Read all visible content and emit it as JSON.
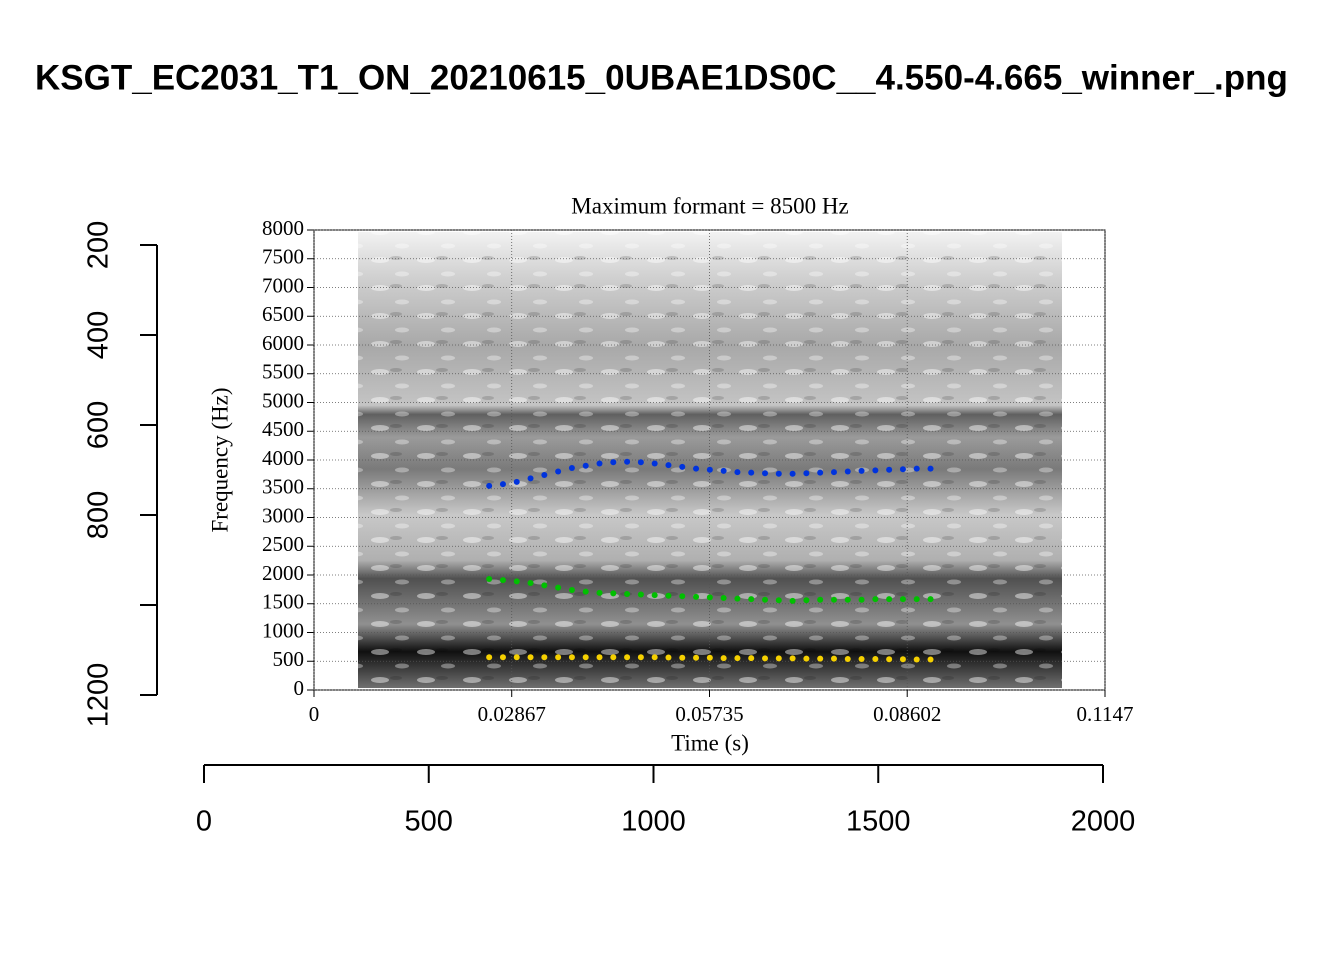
{
  "chart_data": [
    {
      "type": "image",
      "title": "KSGT_EC2031_T1_ON_20210615_0UBAE1DS0C__4.550-4.665_winner_.png",
      "xlim": [
        0,
        2000
      ],
      "xticks": [
        0,
        500,
        1000,
        1500,
        2000
      ],
      "ylim": [
        1200,
        200
      ],
      "yticks": [
        200,
        400,
        600,
        800,
        {
          "value": 1000,
          "label": null
        },
        1200
      ]
    },
    {
      "type": "scatter",
      "title": "Maximum formant = 8500 Hz",
      "xlabel": "Time (s)",
      "ylabel": "Frequency (Hz)",
      "xlim": [
        0,
        0.1147
      ],
      "xticks": [
        0,
        0.02867,
        0.05735,
        0.08602,
        0.1147
      ],
      "ylim": [
        0,
        8000
      ],
      "yticks": [
        0,
        500,
        1000,
        1500,
        2000,
        2500,
        3000,
        3500,
        4000,
        4500,
        5000,
        5500,
        6000,
        6500,
        7000,
        7500,
        8000
      ],
      "grid": true,
      "x": [
        0.0254,
        0.0274,
        0.0294,
        0.0314,
        0.0334,
        0.0354,
        0.0374,
        0.0394,
        0.0414,
        0.0434,
        0.0454,
        0.0474,
        0.0494,
        0.0514,
        0.0534,
        0.0554,
        0.0574,
        0.0594,
        0.0614,
        0.0634,
        0.0654,
        0.0674,
        0.0694,
        0.0714,
        0.0734,
        0.0754,
        0.0774,
        0.0794,
        0.0814,
        0.0834,
        0.0854,
        0.0874,
        0.0894
      ],
      "series": [
        {
          "color": "#f5d000",
          "values": [
            570,
            570,
            570,
            570,
            570,
            570,
            570,
            570,
            570,
            570,
            570,
            570,
            570,
            565,
            560,
            560,
            560,
            555,
            555,
            555,
            550,
            550,
            550,
            545,
            545,
            545,
            540,
            540,
            540,
            535,
            535,
            530,
            530
          ]
        },
        {
          "color": "#00c000",
          "values": [
            1930,
            1910,
            1890,
            1860,
            1820,
            1780,
            1740,
            1710,
            1690,
            1680,
            1670,
            1660,
            1650,
            1640,
            1630,
            1620,
            1610,
            1600,
            1590,
            1580,
            1570,
            1560,
            1550,
            1560,
            1570,
            1570,
            1570,
            1570,
            1580,
            1580,
            1580,
            1580,
            1580
          ]
        },
        {
          "color": "#0033dd",
          "values": [
            3550,
            3580,
            3620,
            3680,
            3740,
            3800,
            3860,
            3900,
            3940,
            3960,
            3970,
            3960,
            3940,
            3910,
            3880,
            3850,
            3830,
            3810,
            3790,
            3780,
            3770,
            3760,
            3760,
            3770,
            3780,
            3790,
            3800,
            3810,
            3820,
            3830,
            3840,
            3850,
            3850
          ]
        }
      ]
    }
  ]
}
